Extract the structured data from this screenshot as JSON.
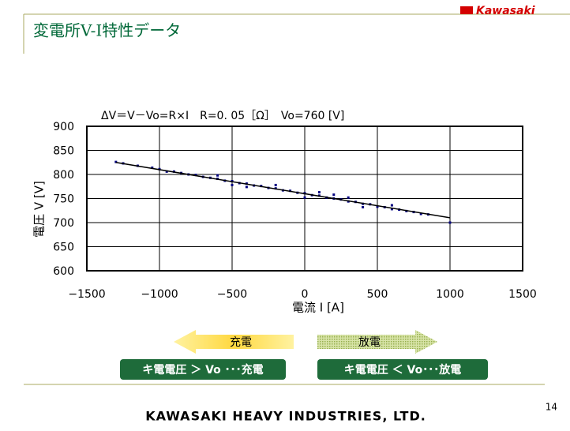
{
  "slide": {
    "title": "変電所V-I特性データ",
    "logo": "Kawasaki",
    "charge_arrow": "充電",
    "discharge_arrow": "放電",
    "charge_box": "キ電電圧 ＞ Vo ･･･充電",
    "discharge_box": "キ電電圧 ＜ Vo･･･放電",
    "footer": "KAWASAKI HEAVY INDUSTRIES, LTD.",
    "page_number": "14"
  },
  "chart_data": {
    "type": "scatter",
    "title": "ΔV＝V－Vo=R×I　R=0. 05［Ω］　Vo=760 [V]",
    "xlabel": "電流 I [A]",
    "ylabel": "電圧 V [V]",
    "xlim": [
      -1500,
      1500
    ],
    "ylim": [
      600,
      900
    ],
    "xticks": [
      {
        "value": -1500,
        "label": "−1500"
      },
      {
        "value": -1000,
        "label": "−1000"
      },
      {
        "value": -500,
        "label": "−500"
      },
      0,
      500,
      1000,
      1500
    ],
    "yticks": [
      600,
      650,
      700,
      750,
      800,
      850,
      900
    ],
    "grid": true,
    "series": [
      {
        "mode": "points",
        "color": "#000080",
        "x": [
          -1300,
          -1250,
          -1150,
          -1050,
          -1000,
          -950,
          -900,
          -850,
          -800,
          -750,
          -700,
          -650,
          -600,
          -550,
          -500,
          -450,
          -400,
          -350,
          -300,
          -250,
          -200,
          -150,
          -100,
          -50,
          0,
          50,
          100,
          150,
          200,
          250,
          300,
          350,
          400,
          450,
          500,
          550,
          600,
          650,
          700,
          750,
          800,
          850,
          1000,
          -600,
          -400,
          -200,
          0,
          200,
          400,
          600,
          -500,
          300,
          100
        ],
        "values": [
          826,
          823,
          818,
          814,
          811,
          806,
          806,
          803,
          800,
          799,
          795,
          793,
          791,
          787,
          786,
          782,
          781,
          777,
          776,
          772,
          771,
          767,
          766,
          762,
          761,
          757,
          756,
          752,
          750,
          748,
          744,
          743,
          739,
          738,
          733,
          732,
          728,
          727,
          724,
          722,
          718,
          717,
          700,
          798,
          774,
          778,
          752,
          758,
          732,
          736,
          778,
          752,
          763
        ]
      },
      {
        "mode": "line",
        "color": "#000000",
        "x": [
          -1300,
          1000
        ],
        "values": [
          825,
          710
        ]
      }
    ]
  }
}
